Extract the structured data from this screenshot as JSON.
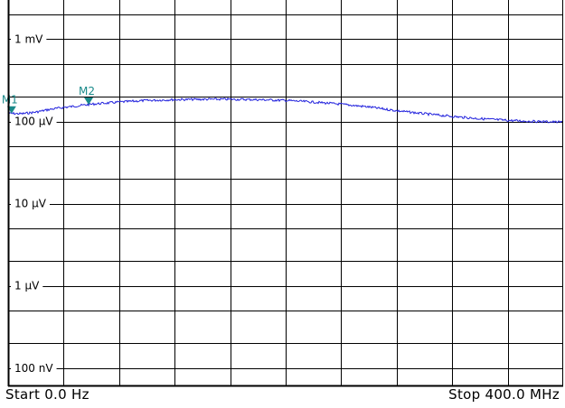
{
  "chart_data": {
    "type": "line",
    "x_start_label": "Start 0.0 Hz",
    "x_stop_label": "Stop 400.0 MHz",
    "xlim_mhz": [
      0,
      400
    ],
    "y_scale": "log",
    "y_unit": "V",
    "ylim": [
      6e-08,
      0.003
    ],
    "y_ticks": [
      {
        "value": 0.001,
        "label": "1 mV"
      },
      {
        "value": 0.0001,
        "label": "100 µV"
      },
      {
        "value": 1e-05,
        "label": "10 µV"
      },
      {
        "value": 1e-06,
        "label": "1 µV"
      },
      {
        "value": 1e-07,
        "label": "100 nV"
      }
    ],
    "x_divisions": 10,
    "grid": true,
    "trace_color": "#2222dd",
    "marker_color": "#1a8a8a",
    "series": [
      {
        "x_mhz": [
          0,
          10,
          20,
          30,
          40,
          60,
          80,
          100,
          120,
          140,
          160,
          180,
          200,
          220,
          240,
          260,
          280,
          300,
          320,
          340,
          360,
          380,
          400
        ],
        "values": [
          0.000125,
          0.000124,
          0.00013,
          0.00014,
          0.000148,
          0.000162,
          0.000172,
          0.00018,
          0.000184,
          0.000186,
          0.000186,
          0.000184,
          0.00018,
          0.000172,
          0.000162,
          0.00015,
          0.000135,
          0.000124,
          0.000115,
          0.000108,
          0.000103,
          0.0001,
          9.8e-05
        ]
      }
    ],
    "markers": [
      {
        "label": "M1",
        "x_mhz": 2.5,
        "value": 0.000125
      },
      {
        "label": "M2",
        "x_mhz": 58,
        "value": 0.00016
      }
    ]
  }
}
